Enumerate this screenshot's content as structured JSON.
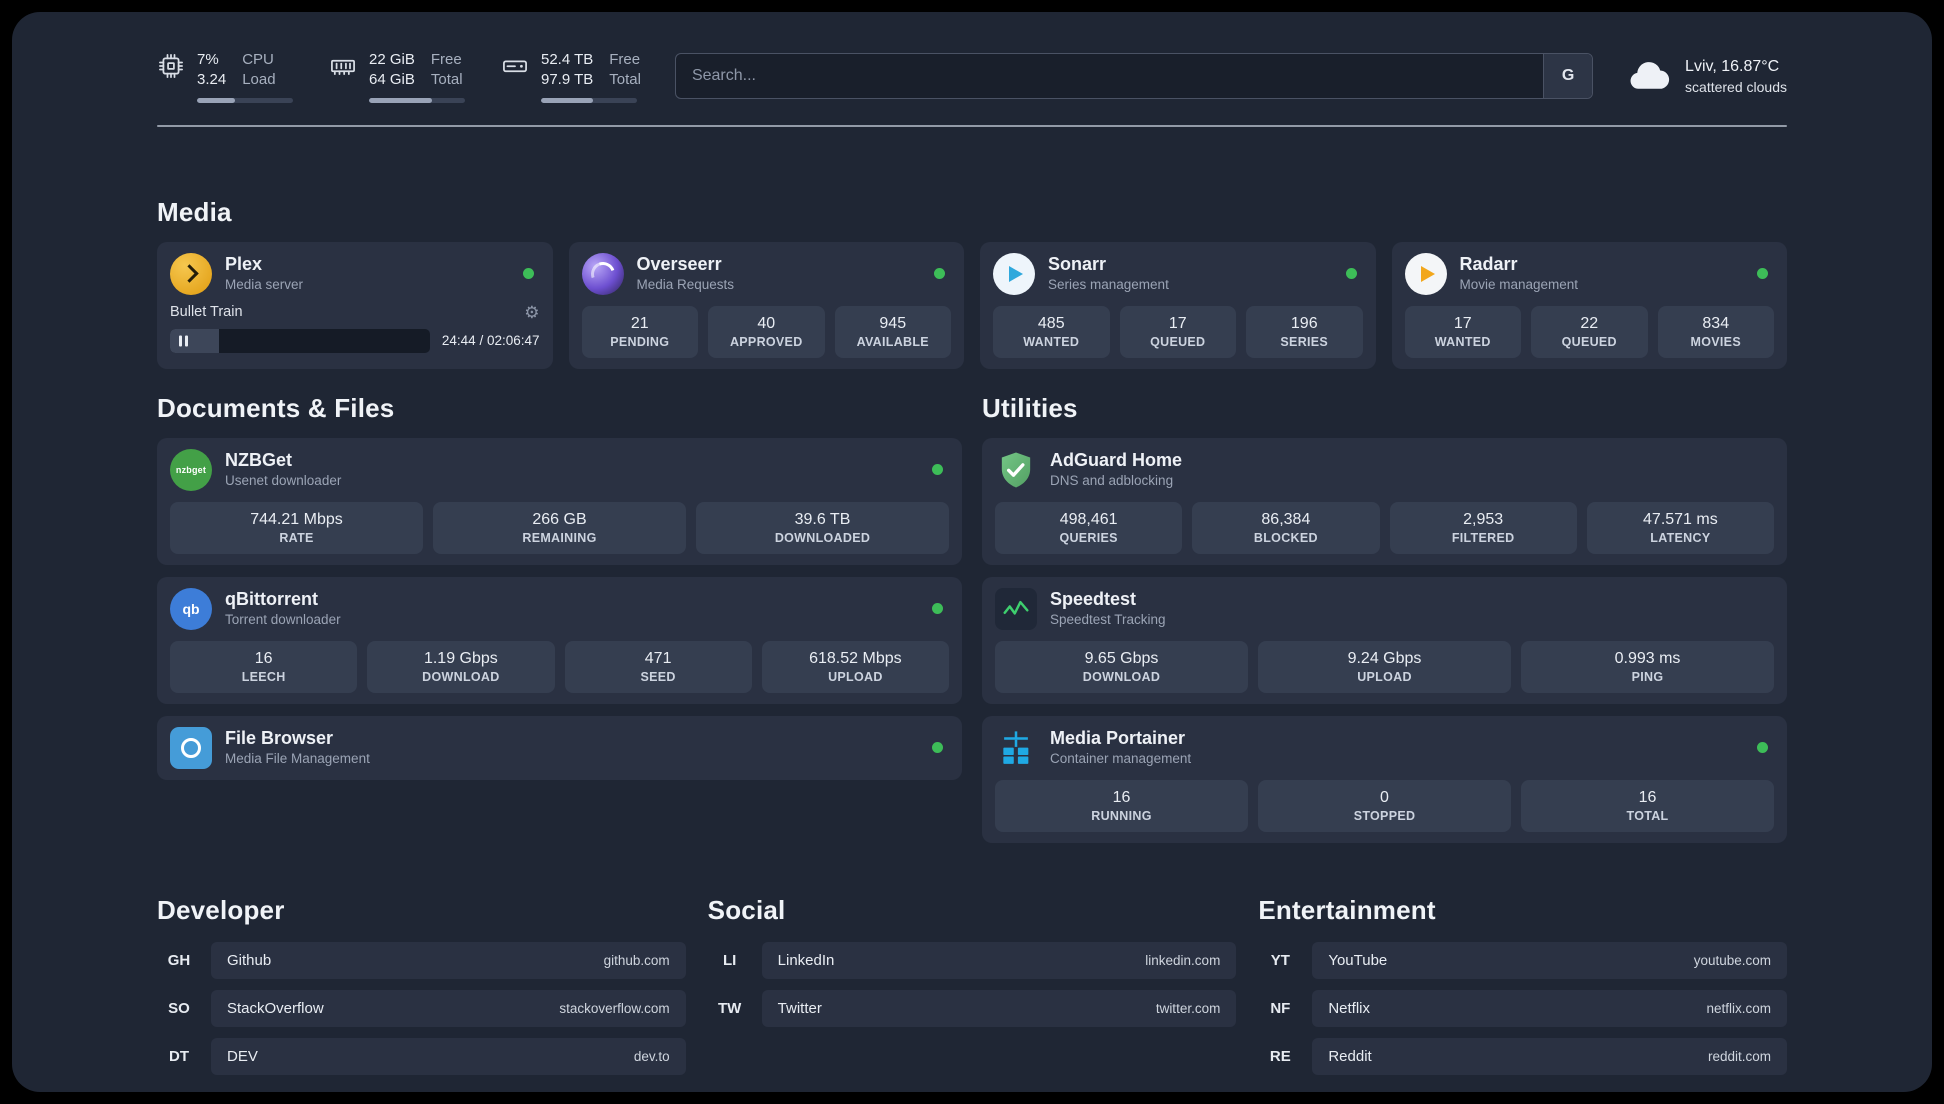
{
  "topbar": {
    "cpu": {
      "value_top": "7%",
      "value_bottom": "3.24",
      "label_top": "CPU",
      "label_bottom": "Load",
      "progress_pct": 40
    },
    "ram": {
      "value_top": "22 GiB",
      "value_bottom": "64 GiB",
      "label_top": "Free",
      "label_bottom": "Total",
      "progress_pct": 66
    },
    "disk": {
      "value_top": "52.4 TB",
      "value_bottom": "97.9 TB",
      "label_top": "Free",
      "label_bottom": "Total",
      "progress_pct": 54
    },
    "search": {
      "placeholder": "Search...",
      "provider_label": "G"
    },
    "weather": {
      "location": "Lviv, 16.87°C",
      "condition": "scattered clouds"
    }
  },
  "media": {
    "title": "Media",
    "plex": {
      "name": "Plex",
      "description": "Media server",
      "status": "online",
      "player": {
        "track_title": "Bullet Train",
        "time": "24:44 / 02:06:47",
        "progress_pct": 19
      }
    },
    "overseerr": {
      "name": "Overseerr",
      "description": "Media Requests",
      "status": "online",
      "stats": [
        {
          "value": "21",
          "label": "PENDING"
        },
        {
          "value": "40",
          "label": "APPROVED"
        },
        {
          "value": "945",
          "label": "AVAILABLE"
        }
      ]
    },
    "sonarr": {
      "name": "Sonarr",
      "description": "Series management",
      "status": "online",
      "stats": [
        {
          "value": "485",
          "label": "WANTED"
        },
        {
          "value": "17",
          "label": "QUEUED"
        },
        {
          "value": "196",
          "label": "SERIES"
        }
      ]
    },
    "radarr": {
      "name": "Radarr",
      "description": "Movie management",
      "status": "online",
      "stats": [
        {
          "value": "17",
          "label": "WANTED"
        },
        {
          "value": "22",
          "label": "QUEUED"
        },
        {
          "value": "834",
          "label": "MOVIES"
        }
      ]
    }
  },
  "files": {
    "title": "Documents & Files",
    "nzbget": {
      "name": "NZBGet",
      "description": "Usenet downloader",
      "status": "online",
      "stats": [
        {
          "value": "744.21 Mbps",
          "label": "RATE"
        },
        {
          "value": "266 GB",
          "label": "REMAINING"
        },
        {
          "value": "39.6 TB",
          "label": "DOWNLOADED"
        }
      ]
    },
    "qbittorrent": {
      "name": "qBittorrent",
      "description": "Torrent downloader",
      "status": "online",
      "stats": [
        {
          "value": "16",
          "label": "LEECH"
        },
        {
          "value": "1.19 Gbps",
          "label": "DOWNLOAD"
        },
        {
          "value": "471",
          "label": "SEED"
        },
        {
          "value": "618.52 Mbps",
          "label": "UPLOAD"
        }
      ]
    },
    "filebrowser": {
      "name": "File Browser",
      "description": "Media File Management",
      "status": "online"
    }
  },
  "utilities": {
    "title": "Utilities",
    "adguard": {
      "name": "AdGuard Home",
      "description": "DNS and adblocking",
      "stats": [
        {
          "value": "498,461",
          "label": "QUERIES"
        },
        {
          "value": "86,384",
          "label": "BLOCKED"
        },
        {
          "value": "2,953",
          "label": "FILTERED"
        },
        {
          "value": "47.571 ms",
          "label": "LATENCY"
        }
      ]
    },
    "speedtest": {
      "name": "Speedtest",
      "description": "Speedtest Tracking",
      "stats": [
        {
          "value": "9.65 Gbps",
          "label": "DOWNLOAD"
        },
        {
          "value": "9.24 Gbps",
          "label": "UPLOAD"
        },
        {
          "value": "0.993 ms",
          "label": "PING"
        }
      ]
    },
    "portainer": {
      "name": "Media Portainer",
      "description": "Container management",
      "status": "online",
      "stats": [
        {
          "value": "16",
          "label": "RUNNING"
        },
        {
          "value": "0",
          "label": "STOPPED"
        },
        {
          "value": "16",
          "label": "TOTAL"
        }
      ]
    }
  },
  "bookmarks": {
    "developer": {
      "title": "Developer",
      "items": [
        {
          "abbr": "GH",
          "name": "Github",
          "url": "github.com"
        },
        {
          "abbr": "SO",
          "name": "StackOverflow",
          "url": "stackoverflow.com"
        },
        {
          "abbr": "DT",
          "name": "DEV",
          "url": "dev.to"
        }
      ]
    },
    "social": {
      "title": "Social",
      "items": [
        {
          "abbr": "LI",
          "name": "LinkedIn",
          "url": "linkedin.com"
        },
        {
          "abbr": "TW",
          "name": "Twitter",
          "url": "twitter.com"
        }
      ]
    },
    "entertainment": {
      "title": "Entertainment",
      "items": [
        {
          "abbr": "YT",
          "name": "YouTube",
          "url": "youtube.com"
        },
        {
          "abbr": "NF",
          "name": "Netflix",
          "url": "netflix.com"
        },
        {
          "abbr": "RE",
          "name": "Reddit",
          "url": "reddit.com"
        }
      ]
    }
  },
  "icons": {
    "qbittorrent_glyph": "qb",
    "nzbget_glyph": "nzbget"
  },
  "colors": {
    "background": "#1f2634",
    "card": "#2a3142",
    "tile": "#353e50",
    "status_online": "#3dbd58"
  }
}
